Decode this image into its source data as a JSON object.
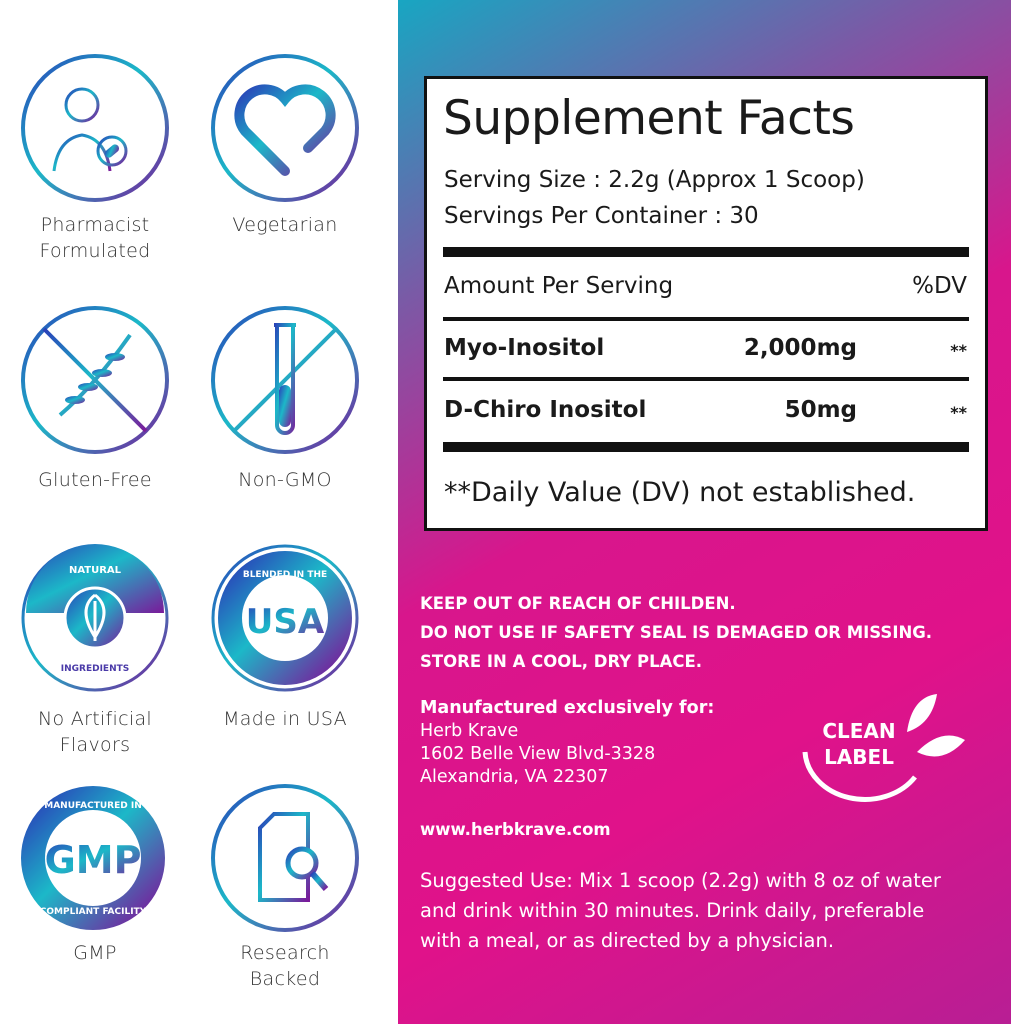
{
  "badges": [
    {
      "icon": "pharmacist-icon",
      "label": [
        "Pharmacist",
        "Formulated"
      ]
    },
    {
      "icon": "heart-icon",
      "label": [
        "Vegetarian"
      ]
    },
    {
      "icon": "wheat-crossed-icon",
      "label": [
        "Gluten-Free"
      ]
    },
    {
      "icon": "test-tube-crossed-icon",
      "label": [
        "Non-GMO"
      ]
    },
    {
      "icon": "leaf-seal-icon",
      "seal_text": [
        "NATURAL",
        "INGREDIENTS"
      ],
      "label": [
        "No Artificial Flavors"
      ]
    },
    {
      "icon": "usa-seal-icon",
      "seal_text": [
        "BLENDED IN THE",
        "USA"
      ],
      "label": [
        "Made in USA"
      ]
    },
    {
      "icon": "gmp-seal-icon",
      "seal_text": [
        "MANUFACTURED IN",
        "GMP",
        "COMPLIANT FACILITY"
      ],
      "label": [
        "GMP"
      ]
    },
    {
      "icon": "document-search-icon",
      "label": [
        "Research",
        "Backed"
      ]
    }
  ],
  "facts": {
    "title": "Supplement Facts",
    "serving_size": "Serving Size : 2.2g (Approx 1 Scoop)",
    "servings_per_container": "Servings Per Container : 30",
    "amount_header": "Amount Per Serving",
    "dv_header": "%DV",
    "rows": [
      {
        "name": "Myo-Inositol",
        "amount": "2,000mg",
        "dv": "**"
      },
      {
        "name": "D-Chiro Inositol",
        "amount": "50mg",
        "dv": "**"
      }
    ],
    "footnote": "**Daily Value (DV) not established."
  },
  "warnings": [
    "KEEP OUT OF REACH OF CHILDEN.",
    "DO NOT USE IF SAFETY SEAL IS DEMAGED OR MISSING.",
    "STORE IN A COOL, DRY PLACE."
  ],
  "manufacturer": [
    "Manufactured exclusively for:",
    "Herb Krave",
    "1602 Belle View Blvd-3328",
    "Alexandria, VA 22307"
  ],
  "website": "www.herbkrave.com",
  "suggested_use": [
    "Suggested Use: Mix 1 scoop (2.2g) with 8 oz of water",
    "and drink within 30 minutes. Drink daily, preferable",
    "with a meal, or as directed by a physician."
  ],
  "clean_label": [
    "CLEAN",
    "LABEL"
  ],
  "colors": {
    "teal": "#18a6c2",
    "purple": "#6a2fa8",
    "magenta": "#e0128a"
  }
}
